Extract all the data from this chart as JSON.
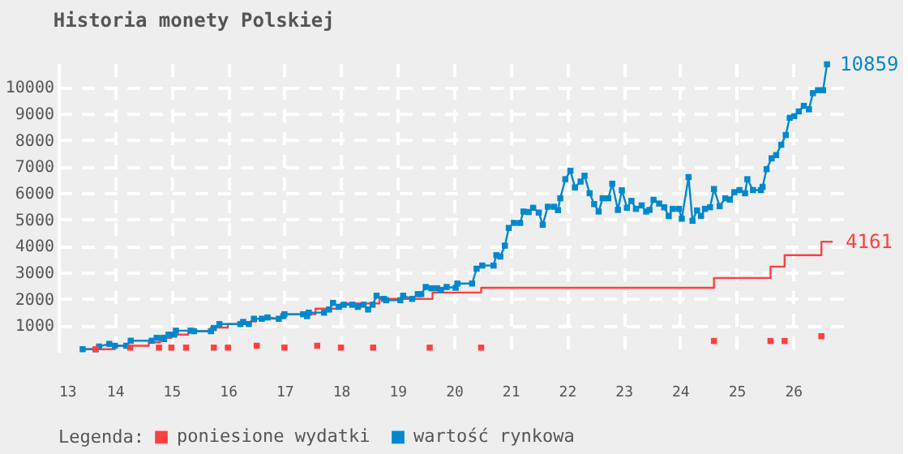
{
  "chart_data": {
    "type": "line",
    "title": "Historia monety Polskiej",
    "legend_title": "Legenda:",
    "xlim": [
      13,
      27
    ],
    "xticks": [
      13,
      14,
      15,
      16,
      17,
      18,
      19,
      20,
      21,
      22,
      23,
      24,
      25,
      26
    ],
    "ylim": [
      0,
      10900
    ],
    "yticks": [
      1000,
      2000,
      3000,
      4000,
      5000,
      6000,
      7000,
      8000,
      9000,
      10000
    ],
    "grid": true,
    "legend": "bottom",
    "annotations": [
      {
        "text": "10859",
        "x": 26.6,
        "y": 10859
      },
      {
        "text": "4161",
        "x": 26.7,
        "y": 4161
      }
    ],
    "series": [
      {
        "name": "poniesione wydatki",
        "type": "step",
        "color": "#ff4040",
        "marker": "none",
        "x": [
          13.4,
          14.0,
          14.6,
          14.8,
          15.0,
          15.3,
          15.7,
          16.0,
          16.4,
          16.5,
          16.95,
          17.0,
          17.55,
          18.0,
          18.68,
          19.62,
          20.48,
          24.6,
          25.6,
          25.85,
          26.5,
          26.7
        ],
        "values": [
          100,
          230,
          360,
          530,
          650,
          780,
          920,
          1050,
          1150,
          1250,
          1320,
          1420,
          1630,
          1830,
          2000,
          2240,
          2420,
          2790,
          3220,
          3650,
          4161,
          4161
        ]
      },
      {
        "name": "wartość rynkowa",
        "color": "#0088cc",
        "marker": "square",
        "x": [
          13.43,
          13.66,
          13.72,
          13.9,
          14.0,
          14.2,
          14.28,
          14.65,
          14.74,
          14.85,
          14.87,
          14.95,
          15.05,
          15.08,
          15.34,
          15.4,
          15.7,
          15.75,
          15.85,
          16.22,
          16.27,
          16.37,
          16.46,
          16.6,
          16.7,
          16.9,
          16.98,
          17.0,
          17.33,
          17.4,
          17.43,
          17.7,
          17.79,
          17.86,
          17.96,
          18.05,
          18.2,
          18.3,
          18.4,
          18.48,
          18.56,
          18.63,
          18.76,
          18.8,
          19.05,
          19.1,
          19.26,
          19.36,
          19.42,
          19.5,
          19.6,
          19.7,
          19.77,
          19.87,
          20.03,
          20.06,
          20.32,
          20.4,
          20.5,
          20.7,
          20.75,
          20.82,
          20.9,
          20.97,
          21.06,
          21.17,
          21.23,
          21.32,
          21.4,
          21.5,
          21.57,
          21.66,
          21.77,
          21.84,
          21.88,
          21.97,
          22.06,
          22.14,
          22.24,
          22.31,
          22.4,
          22.48,
          22.56,
          22.63,
          22.73,
          22.8,
          22.9,
          22.97,
          23.06,
          23.14,
          23.22,
          23.32,
          23.4,
          23.46,
          23.53,
          23.63,
          23.72,
          23.8,
          23.87,
          23.98,
          24.03,
          24.15,
          24.22,
          24.3,
          24.37,
          24.44,
          24.53,
          24.6,
          24.7,
          24.8,
          24.88,
          24.96,
          25.05,
          25.15,
          25.19,
          25.29,
          25.43,
          25.46,
          25.53,
          25.62,
          25.7,
          25.79,
          25.87,
          25.94,
          26.02,
          26.1,
          26.19,
          26.28,
          26.35,
          26.44,
          26.53,
          26.6
        ],
        "values": [
          100,
          100,
          200,
          300,
          230,
          230,
          420,
          420,
          530,
          530,
          480,
          650,
          650,
          800,
          800,
          780,
          780,
          900,
          1050,
          1050,
          1130,
          1050,
          1250,
          1250,
          1300,
          1250,
          1350,
          1420,
          1420,
          1350,
          1480,
          1480,
          1600,
          1850,
          1700,
          1780,
          1780,
          1700,
          1780,
          1600,
          1780,
          2120,
          2000,
          1950,
          1950,
          2120,
          2000,
          2180,
          2180,
          2450,
          2400,
          2400,
          2340,
          2450,
          2420,
          2580,
          2580,
          3140,
          3260,
          3260,
          3650,
          3600,
          4010,
          4680,
          4870,
          4870,
          5300,
          5280,
          5440,
          5260,
          4800,
          5480,
          5480,
          5350,
          5800,
          6520,
          6840,
          6210,
          6430,
          6650,
          5990,
          5580,
          5300,
          5800,
          5800,
          6350,
          5360,
          6100,
          5440,
          5700,
          5400,
          5530,
          5300,
          5360,
          5740,
          5600,
          5460,
          5130,
          5400,
          5400,
          5030,
          6600,
          4950,
          5340,
          5130,
          5400,
          5460,
          6150,
          5500,
          5800,
          5750,
          6030,
          6110,
          5990,
          6520,
          6110,
          6110,
          6230,
          6900,
          7310,
          7430,
          7820,
          8190,
          8840,
          8900,
          9080,
          9290,
          9160,
          9770,
          9880,
          9880,
          10859
        ]
      },
      {
        "type": "scatter",
        "color": "#ff4040",
        "marker": "square",
        "x": [
          13.66,
          14.27,
          14.78,
          15.0,
          15.26,
          15.75,
          16.0,
          16.51,
          17.0,
          17.58,
          18.0,
          18.57,
          19.57,
          20.48,
          24.6,
          25.6,
          25.85,
          26.5
        ],
        "values": [
          100,
          160,
          160,
          160,
          160,
          160,
          160,
          230,
          160,
          230,
          160,
          160,
          160,
          160,
          410,
          410,
          410,
          590
        ]
      }
    ]
  }
}
